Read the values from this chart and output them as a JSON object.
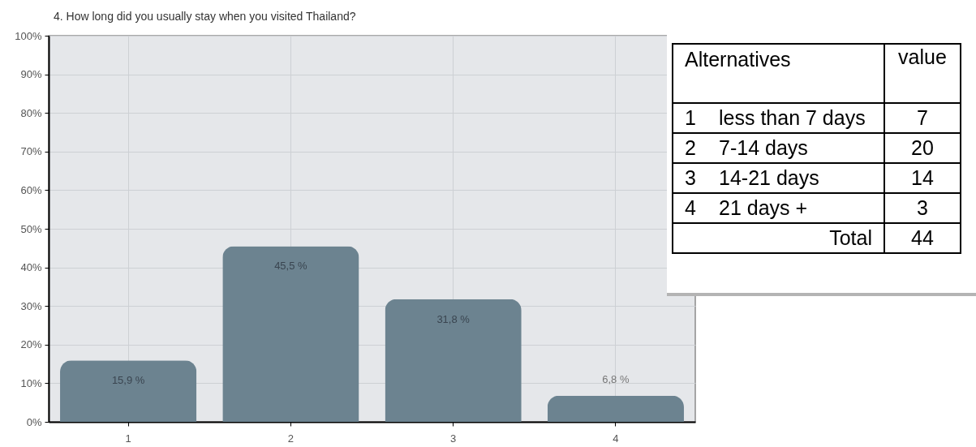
{
  "chart_data": [
    {
      "type": "bar",
      "title": "4. How long did you usually stay when you visited Thailand?",
      "categories": [
        "1",
        "2",
        "3",
        "4"
      ],
      "values": [
        15.9,
        45.5,
        31.8,
        6.8
      ],
      "value_labels": [
        "15,9 %",
        "45,5 %",
        "31,8 %",
        "6,8 %"
      ],
      "color": "#6c8390",
      "ylim": [
        0,
        100
      ],
      "yticks": [
        {
          "value": 0,
          "label": "0%"
        },
        {
          "value": 10,
          "label": "10%"
        },
        {
          "value": 20,
          "label": "20%"
        },
        {
          "value": 30,
          "label": "30%"
        },
        {
          "value": 40,
          "label": "40%"
        },
        {
          "value": 50,
          "label": "50%"
        },
        {
          "value": 60,
          "label": "60%"
        },
        {
          "value": 70,
          "label": "70%"
        },
        {
          "value": 80,
          "label": "80%"
        },
        {
          "value": 90,
          "label": "90%"
        },
        {
          "value": 100,
          "label": "100%"
        }
      ],
      "grid": true
    },
    {
      "type": "other",
      "xlabel": "Alternatives",
      "ylabel": "value",
      "categories": [
        "1\tless than 7 days",
        "2\t7-14 days",
        "3\t14-21 days",
        "4\t21 days +"
      ],
      "values": [
        7,
        20,
        14,
        3
      ],
      "data_labels": true,
      "annotations": [
        "Total"
      ],
      "totals": [
        "44"
      ]
    }
  ]
}
